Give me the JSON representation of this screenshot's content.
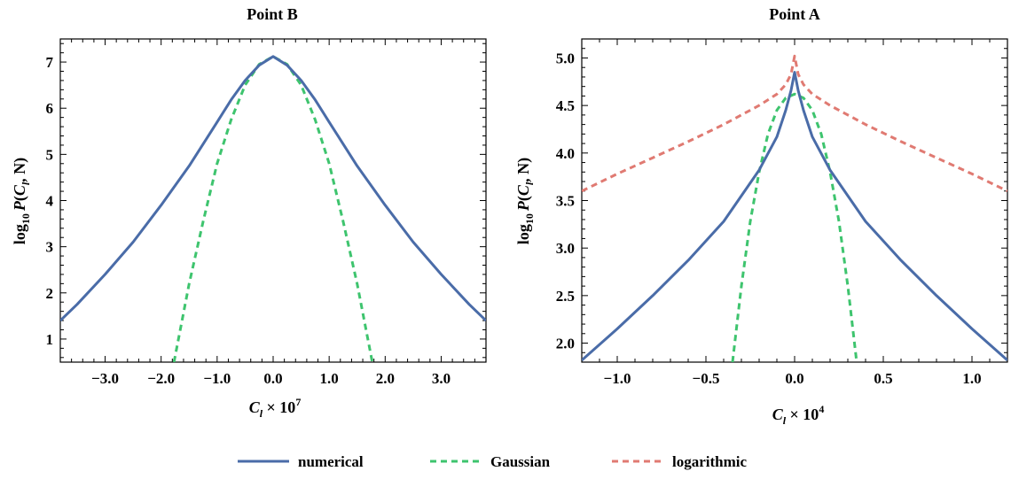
{
  "chart_data": [
    {
      "type": "line",
      "title": "Point B",
      "xlabel": "C_l × 10^7",
      "xlabel_parts": {
        "var": "C",
        "sub": "l",
        "times": " × 10",
        "exp": "7"
      },
      "ylabel": "log10 P(C_l, N)",
      "ylabel_parts": {
        "log": "log",
        "log_sub": "10",
        "fn": "P",
        "open": "(",
        "var": "C",
        "sub": "l",
        "rest": ", N)"
      },
      "xlim": [
        -3.8,
        3.8
      ],
      "ylim": [
        0.5,
        7.5
      ],
      "xticks": [
        -3,
        -2,
        -1,
        0,
        1,
        2,
        3
      ],
      "xtick_labels": [
        "−3.0",
        "−2.0",
        "−1.0",
        "0.0",
        "1.0",
        "2.0",
        "3.0"
      ],
      "yticks": [
        1,
        2,
        3,
        4,
        5,
        6,
        7
      ],
      "ytick_labels": [
        "1",
        "2",
        "3",
        "4",
        "5",
        "6",
        "7"
      ],
      "series": [
        {
          "name": "numerical",
          "style": "solid",
          "x": [
            -3.8,
            -3.5,
            -3.0,
            -2.5,
            -2.0,
            -1.5,
            -1.0,
            -0.75,
            -0.5,
            -0.25,
            0.0,
            0.25,
            0.5,
            0.75,
            1.0,
            1.5,
            2.0,
            2.5,
            3.0,
            3.5,
            3.8
          ],
          "y": [
            1.4,
            1.75,
            2.4,
            3.1,
            3.9,
            4.75,
            5.7,
            6.18,
            6.6,
            6.93,
            7.12,
            6.93,
            6.6,
            6.18,
            5.7,
            4.75,
            3.9,
            3.1,
            2.4,
            1.75,
            1.4
          ]
        },
        {
          "name": "Gaussian",
          "style": "dashed",
          "x": [
            -1.77,
            -1.5,
            -1.25,
            -1.0,
            -0.75,
            -0.5,
            -0.25,
            0.0,
            0.25,
            0.5,
            0.75,
            1.0,
            1.25,
            1.5,
            1.77
          ],
          "y": [
            0.5,
            2.2,
            3.55,
            4.8,
            5.75,
            6.5,
            6.95,
            7.12,
            6.95,
            6.5,
            5.75,
            4.8,
            3.55,
            2.2,
            0.5
          ]
        }
      ]
    },
    {
      "type": "line",
      "title": "Point A",
      "xlabel": "C_l × 10^4",
      "xlabel_parts": {
        "var": "C",
        "sub": "l",
        "times": " × 10",
        "exp": "4"
      },
      "ylabel": "log10 P(C_l, N)",
      "ylabel_parts": {
        "log": "log",
        "log_sub": "10",
        "fn": "P",
        "open": "(",
        "var": "C",
        "sub": "l",
        "rest": ", N)"
      },
      "xlim": [
        -1.2,
        1.2
      ],
      "ylim": [
        1.8,
        5.2
      ],
      "xticks": [
        -1.0,
        -0.5,
        0.0,
        0.5,
        1.0
      ],
      "xtick_labels": [
        "−1.0",
        "−0.5",
        "0.0",
        "0.5",
        "1.0"
      ],
      "yticks": [
        2.0,
        2.5,
        3.0,
        3.5,
        4.0,
        4.5,
        5.0
      ],
      "ytick_labels": [
        "2.0",
        "2.5",
        "3.0",
        "3.5",
        "4.0",
        "4.5",
        "5.0"
      ],
      "series": [
        {
          "name": "numerical",
          "style": "solid",
          "x": [
            -1.2,
            -1.0,
            -0.8,
            -0.6,
            -0.4,
            -0.2,
            -0.1,
            -0.05,
            -0.02,
            0.0,
            0.02,
            0.05,
            0.1,
            0.2,
            0.4,
            0.6,
            0.8,
            1.0,
            1.2
          ],
          "y": [
            1.82,
            2.15,
            2.5,
            2.87,
            3.28,
            3.82,
            4.17,
            4.45,
            4.66,
            4.85,
            4.66,
            4.45,
            4.17,
            3.82,
            3.28,
            2.87,
            2.5,
            2.15,
            1.82
          ]
        },
        {
          "name": "Gaussian",
          "style": "dashed",
          "x": [
            -0.35,
            -0.3,
            -0.25,
            -0.2,
            -0.15,
            -0.1,
            -0.05,
            0.0,
            0.05,
            0.1,
            0.15,
            0.2,
            0.25,
            0.3,
            0.35
          ],
          "y": [
            1.8,
            2.6,
            3.28,
            3.8,
            4.2,
            4.45,
            4.58,
            4.62,
            4.58,
            4.45,
            4.2,
            3.8,
            3.28,
            2.6,
            1.8
          ]
        },
        {
          "name": "logarithmic",
          "style": "dashed",
          "x": [
            -1.2,
            -1.0,
            -0.8,
            -0.6,
            -0.4,
            -0.2,
            -0.1,
            -0.05,
            -0.02,
            0.0,
            0.02,
            0.05,
            0.1,
            0.2,
            0.4,
            0.6,
            0.8,
            1.0,
            1.2
          ],
          "y": [
            3.6,
            3.78,
            3.95,
            4.12,
            4.3,
            4.5,
            4.62,
            4.72,
            4.83,
            5.02,
            4.83,
            4.72,
            4.62,
            4.5,
            4.3,
            4.12,
            3.95,
            3.78,
            3.6
          ]
        }
      ]
    }
  ],
  "legend": [
    {
      "name": "numerical",
      "style": "solid",
      "color": "#4a6ca8"
    },
    {
      "name": "Gaussian",
      "style": "dashed",
      "color": "#3ec46e"
    },
    {
      "name": "logarithmic",
      "style": "dashed",
      "color": "#e07a72"
    }
  ],
  "colors": {
    "numerical": "#4a6ca8",
    "Gaussian": "#3ec46e",
    "logarithmic": "#e07a72"
  }
}
